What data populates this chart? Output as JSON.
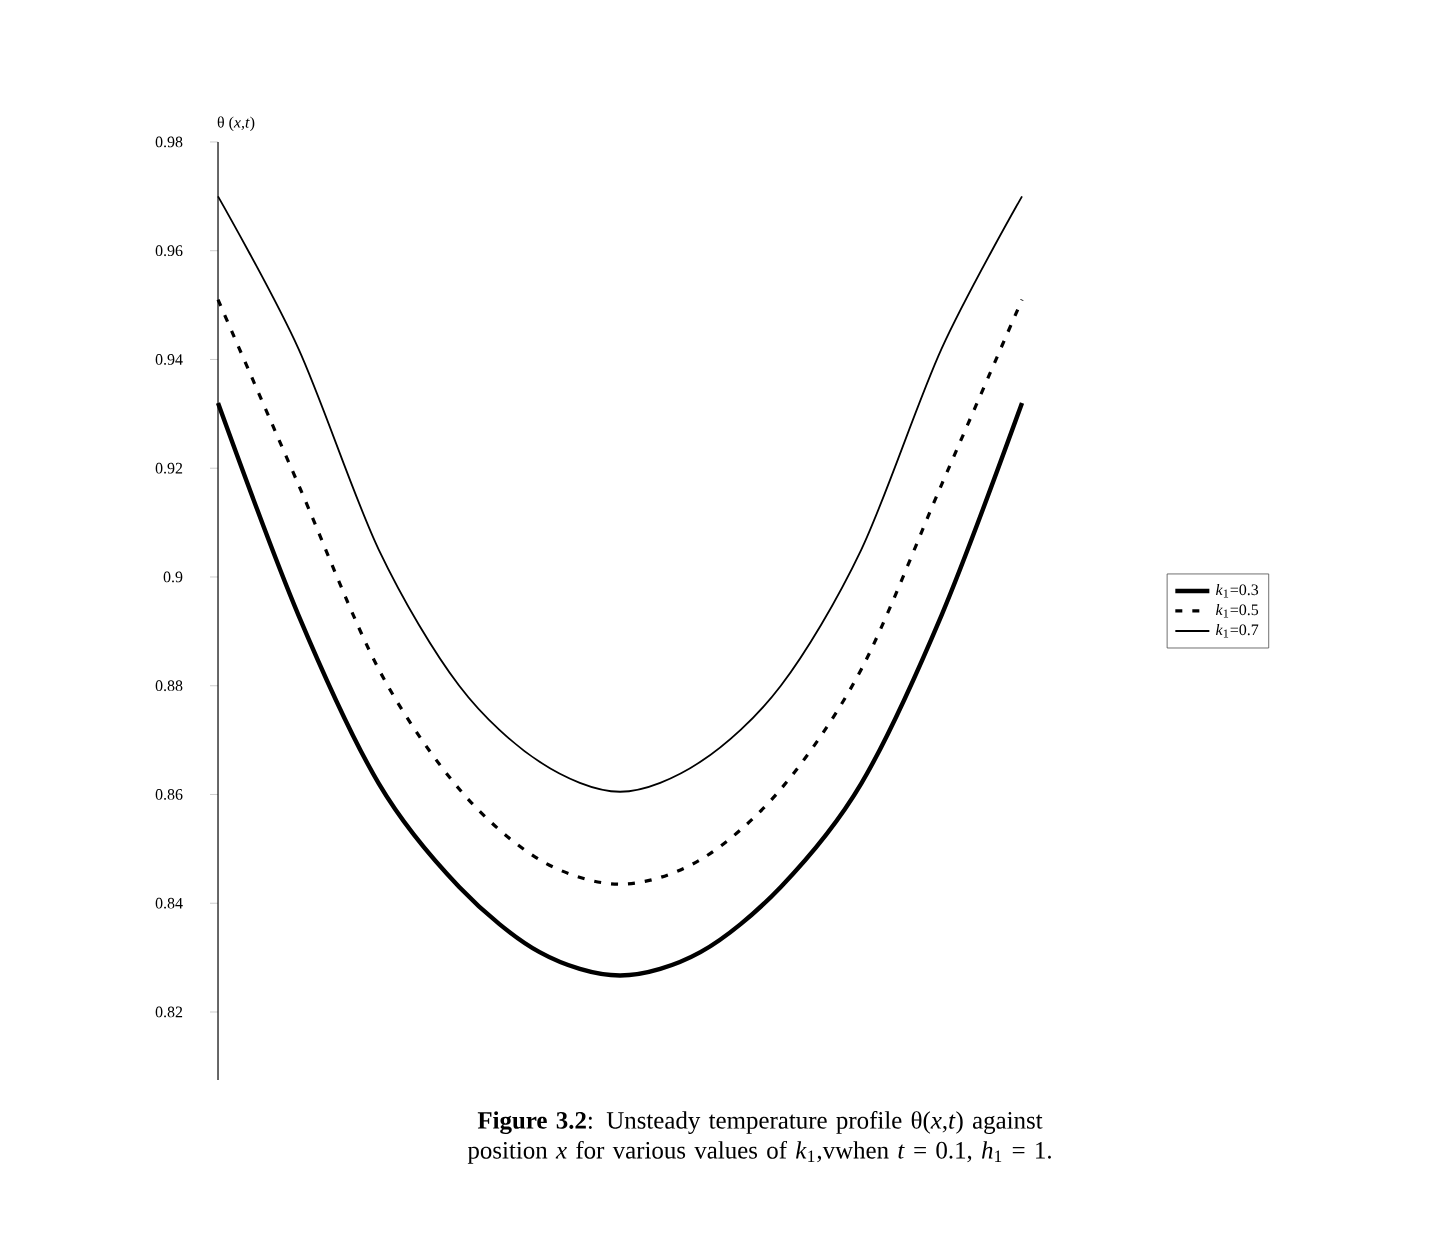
{
  "chart_data": {
    "type": "line",
    "ylabel": "θ (*x,t*)",
    "categories": [
      null,
      null,
      null,
      null,
      null,
      null,
      null,
      null,
      null,
      null,
      null
    ],
    "ylim": [
      0.8075,
      0.98
    ],
    "yticks": [
      0.82,
      0.84,
      0.86,
      0.88,
      0.9,
      0.92,
      0.94,
      0.96,
      0.98
    ],
    "legend": "right",
    "grid": false,
    "marker": "none",
    "series": [
      {
        "name": "*k*$_{1}$=0.3",
        "color": "#000000",
        "line_style": "solid",
        "values": [
          0.932,
          0.893,
          0.862,
          0.843,
          0.831,
          0.8267,
          0.831,
          0.843,
          0.862,
          0.893,
          0.932
        ]
      },
      {
        "name": "*k*$_{1}$=0.5",
        "color": "#000000",
        "line_style": "dashed",
        "values": [
          0.951,
          0.917,
          0.883,
          0.861,
          0.848,
          0.8435,
          0.848,
          0.861,
          0.883,
          0.917,
          0.951
        ]
      },
      {
        "name": "*k*$_{1}$=0.7",
        "color": "#000000",
        "line_style": "solid",
        "values": [
          0.97,
          0.942,
          0.905,
          0.88,
          0.866,
          0.8605,
          0.866,
          0.88,
          0.905,
          0.942,
          0.97
        ]
      }
    ],
    "annotations": [
      "**Figure 3.2**: Unsteady temperature profile θ(*x*,*t*) against position *x* for various values of *k*$_{1}$,vwhen *t* = 0.1, *h*$_{1}$ = 1."
    ]
  }
}
